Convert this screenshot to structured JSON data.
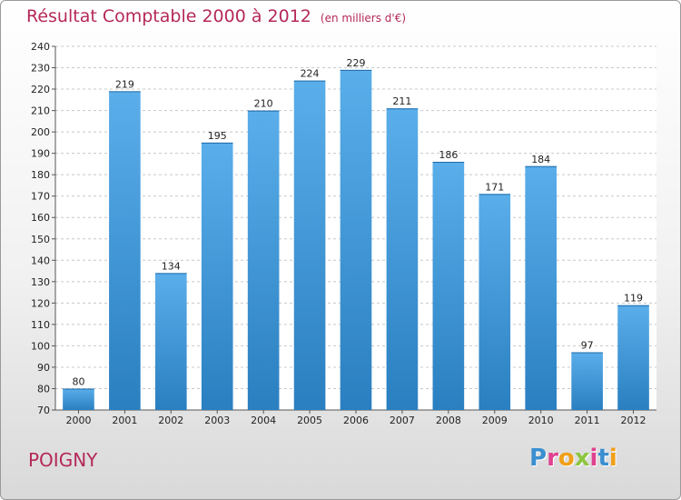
{
  "chart_data": {
    "type": "bar",
    "title": "Résultat Comptable 2000 à 2012",
    "subtitle": "(en milliers d'€)",
    "categories": [
      "2000",
      "2001",
      "2002",
      "2003",
      "2004",
      "2005",
      "2006",
      "2007",
      "2008",
      "2009",
      "2010",
      "2011",
      "2012"
    ],
    "values": [
      80,
      219,
      134,
      195,
      210,
      224,
      229,
      211,
      186,
      171,
      184,
      97,
      119
    ],
    "ylim": [
      70,
      240
    ],
    "yticks": [
      70,
      80,
      90,
      100,
      110,
      120,
      130,
      140,
      150,
      160,
      170,
      180,
      190,
      200,
      210,
      220,
      230,
      240
    ],
    "xlabel": "",
    "ylabel": "",
    "grid": true,
    "bar_color": "#3f95d8"
  },
  "place_name": "POIGNY",
  "logo": {
    "text": "Proxiti",
    "letters": [
      {
        "char": "P",
        "color": "#3a8fd0"
      },
      {
        "char": "r",
        "color": "#e0428f"
      },
      {
        "char": "o",
        "color": "#f0a019"
      },
      {
        "char": "x",
        "color": "#8cc63f"
      },
      {
        "char": "i",
        "color": "#e0428f"
      },
      {
        "char": "t",
        "color": "#3a8fd0"
      },
      {
        "char": "i",
        "color": "#f0a019"
      }
    ]
  },
  "colors": {
    "title": "#b5285a"
  }
}
